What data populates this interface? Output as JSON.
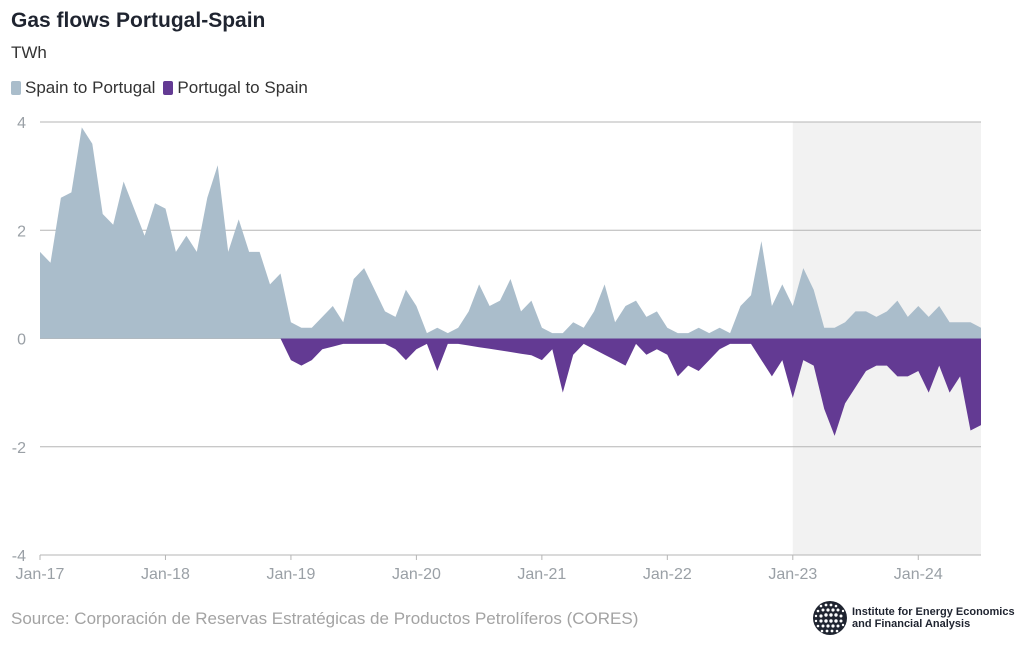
{
  "title": "Gas flows Portugal-Spain",
  "subtitle": "TWh",
  "source": "Source: Corporación de Reservas Estratégicas de Productos Petrolíferos (CORES)",
  "logo": {
    "line1": "Institute for Energy Economics",
    "line2": "and Financial Analysis",
    "icon": "globe-icon"
  },
  "colors": {
    "spain_to_portugal": "#aabdcb",
    "portugal_to_spain": "#633a93",
    "highlight_band": "#f2f2f2",
    "grid": "#b5b5b5"
  },
  "chart_data": {
    "type": "area",
    "title": "Gas flows Portugal-Spain",
    "ylabel": "TWh",
    "ylim": [
      -4,
      4
    ],
    "yticks": [
      4,
      2,
      0,
      -2,
      -4
    ],
    "xticks": [
      "Jan-17",
      "Jan-18",
      "Jan-19",
      "Jan-20",
      "Jan-21",
      "Jan-22",
      "Jan-23",
      "Jan-24"
    ],
    "x_start": "Jan-17",
    "x_end": "Jul-24",
    "highlight_from": "Jan-23",
    "legend_position": "top-left",
    "grid": true,
    "series": [
      {
        "name": "Spain to Portugal",
        "color": "#aabdcb",
        "values": [
          1.6,
          1.4,
          2.6,
          2.7,
          3.9,
          3.6,
          2.3,
          2.1,
          2.9,
          2.4,
          1.9,
          2.5,
          2.4,
          1.6,
          1.9,
          1.6,
          2.6,
          3.2,
          1.6,
          2.2,
          1.6,
          1.6,
          1.0,
          1.2,
          0.3,
          0.2,
          0.2,
          0.4,
          0.6,
          0.3,
          1.1,
          1.3,
          0.9,
          0.5,
          0.4,
          0.9,
          0.6,
          0.1,
          0.2,
          0.1,
          0.2,
          0.5,
          1.0,
          0.6,
          0.7,
          1.1,
          0.5,
          0.7,
          0.2,
          0.1,
          0.1,
          0.3,
          0.2,
          0.5,
          1.0,
          0.3,
          0.6,
          0.7,
          0.4,
          0.5,
          0.2,
          0.1,
          0.1,
          0.2,
          0.1,
          0.2,
          0.1,
          0.6,
          0.8,
          1.8,
          0.6,
          1.0,
          0.6,
          1.3,
          0.9,
          0.2,
          0.2,
          0.3,
          0.5,
          0.5,
          0.4,
          0.5,
          0.7,
          0.4,
          0.6,
          0.4,
          0.6,
          0.3,
          0.3,
          0.3,
          0.2
        ]
      },
      {
        "name": "Portugal to Spain",
        "color": "#633a93",
        "values": [
          0,
          0,
          0,
          0,
          0,
          0,
          0,
          0,
          0,
          0,
          0,
          0,
          0,
          0,
          0,
          0,
          0,
          0,
          0,
          0,
          0,
          0,
          0,
          0,
          -0.4,
          -0.5,
          -0.4,
          -0.2,
          -0.15,
          -0.1,
          -0.1,
          -0.1,
          -0.1,
          -0.1,
          -0.2,
          -0.4,
          -0.2,
          -0.1,
          -0.6,
          -0.1,
          -0.1,
          -0.13,
          -0.16,
          -0.19,
          -0.22,
          -0.25,
          -0.28,
          -0.31,
          -0.4,
          -0.2,
          -1.0,
          -0.3,
          -0.1,
          -0.2,
          -0.3,
          -0.4,
          -0.5,
          -0.1,
          -0.3,
          -0.2,
          -0.3,
          -0.7,
          -0.5,
          -0.6,
          -0.4,
          -0.2,
          -0.1,
          -0.1,
          -0.1,
          -0.4,
          -0.7,
          -0.4,
          -1.1,
          -0.4,
          -0.5,
          -1.3,
          -1.8,
          -1.2,
          -0.9,
          -0.6,
          -0.5,
          -0.5,
          -0.7,
          -0.7,
          -0.6,
          -1.0,
          -0.5,
          -1.0,
          -0.7,
          -1.7,
          -1.6
        ]
      }
    ]
  }
}
